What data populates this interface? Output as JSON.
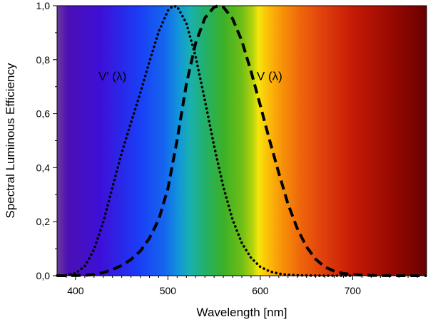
{
  "chart_data": {
    "type": "line",
    "title": "",
    "xlabel": "Wavelength [nm]",
    "ylabel": "Spectral Luminous Efficiency",
    "xlim": [
      380,
      780
    ],
    "ylim": [
      0.0,
      1.0
    ],
    "x_ticks": [
      400,
      500,
      600,
      700
    ],
    "x_tick_labels": [
      "400",
      "500",
      "600",
      "700"
    ],
    "y_ticks": [
      0.0,
      0.2,
      0.4,
      0.6,
      0.8,
      1.0
    ],
    "y_tick_labels": [
      "0,0",
      "0,2",
      "0,4",
      "0,6",
      "0,8",
      "1,0"
    ],
    "background": "visible-spectrum-gradient",
    "grid": false,
    "series": [
      {
        "name": "V' (λ)",
        "line_style": "dotted",
        "color": "#000000",
        "label_at": [
          440,
          0.74
        ],
        "x": [
          380,
          390,
          400,
          410,
          420,
          430,
          440,
          450,
          460,
          470,
          480,
          490,
          500,
          505,
          510,
          520,
          530,
          540,
          550,
          560,
          570,
          580,
          590,
          600,
          610,
          620,
          630,
          640,
          650,
          660,
          670,
          680,
          690,
          700
        ],
        "y": [
          0.0006,
          0.0022,
          0.0093,
          0.0348,
          0.0966,
          0.1998,
          0.328,
          0.455,
          0.567,
          0.676,
          0.793,
          0.904,
          0.982,
          0.998,
          0.997,
          0.935,
          0.811,
          0.65,
          0.481,
          0.329,
          0.208,
          0.121,
          0.066,
          0.033,
          0.016,
          0.0074,
          0.0033,
          0.0015,
          0.0007,
          0.0003,
          0.0001,
          0.0001,
          0.0,
          0.0
        ]
      },
      {
        "name": "V (λ)",
        "line_style": "dashed",
        "color": "#000000",
        "label_at": [
          610,
          0.74
        ],
        "x": [
          380,
          390,
          400,
          410,
          420,
          430,
          440,
          450,
          460,
          470,
          480,
          490,
          500,
          510,
          520,
          530,
          540,
          550,
          555,
          560,
          570,
          580,
          590,
          600,
          610,
          620,
          630,
          640,
          650,
          660,
          670,
          680,
          690,
          700,
          710,
          720,
          730,
          740,
          750,
          760,
          770,
          780
        ],
        "y": [
          0.0,
          0.0001,
          0.0004,
          0.0012,
          0.004,
          0.0116,
          0.023,
          0.038,
          0.06,
          0.091,
          0.139,
          0.208,
          0.323,
          0.503,
          0.71,
          0.862,
          0.954,
          0.995,
          1.0,
          0.995,
          0.952,
          0.87,
          0.757,
          0.631,
          0.503,
          0.381,
          0.265,
          0.175,
          0.107,
          0.061,
          0.032,
          0.017,
          0.0082,
          0.0041,
          0.0021,
          0.001,
          0.0005,
          0.0003,
          0.0001,
          0.0001,
          0.0,
          0.0
        ]
      }
    ]
  }
}
